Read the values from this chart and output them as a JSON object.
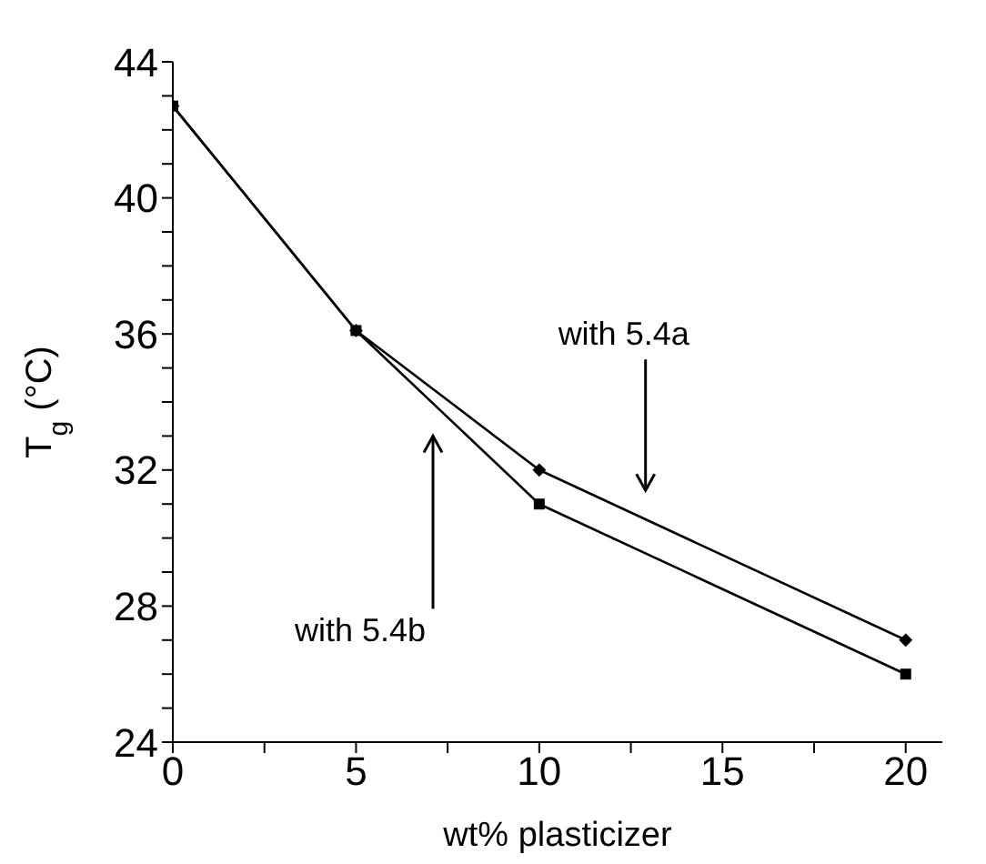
{
  "chart_data": {
    "type": "line",
    "xlabel": "wt% plasticizer",
    "ylabel": "T$_{g}$ (°C)",
    "x": [
      0,
      5,
      10,
      20
    ],
    "series": [
      {
        "color": "#000000",
        "values": [
          42.7,
          36.1,
          32,
          27
        ],
        "marker": "diamond"
      },
      {
        "color": "#000000",
        "values": [
          42.7,
          36.1,
          31,
          26
        ],
        "marker": "square"
      }
    ],
    "xlim": [
      0,
      21
    ],
    "xticks": [
      0,
      {
        "value": 2.5,
        "label": null
      },
      5,
      {
        "value": 7.5,
        "label": null
      },
      10,
      {
        "value": 12.5,
        "label": null
      },
      15,
      {
        "value": 17.5,
        "label": null
      },
      20
    ],
    "ylim": [
      24,
      44
    ],
    "yticks": [
      24,
      {
        "value": 25,
        "label": null
      },
      {
        "value": 26,
        "label": null
      },
      {
        "value": 27,
        "label": null
      },
      28,
      {
        "value": 29,
        "label": null
      },
      {
        "value": 30,
        "label": null
      },
      {
        "value": 31,
        "label": null
      },
      32,
      {
        "value": 33,
        "label": null
      },
      {
        "value": 34,
        "label": null
      },
      {
        "value": 35,
        "label": null
      },
      36,
      {
        "value": 37,
        "label": null
      },
      {
        "value": 38,
        "label": null
      },
      {
        "value": 39,
        "label": null
      },
      40,
      {
        "value": 41,
        "label": null
      },
      {
        "value": 42,
        "label": null
      },
      {
        "value": 43,
        "label": null
      },
      44
    ],
    "grid": false,
    "line_style": "solid",
    "annotations": [
      "with 5.4a",
      "with 5.4b"
    ]
  }
}
